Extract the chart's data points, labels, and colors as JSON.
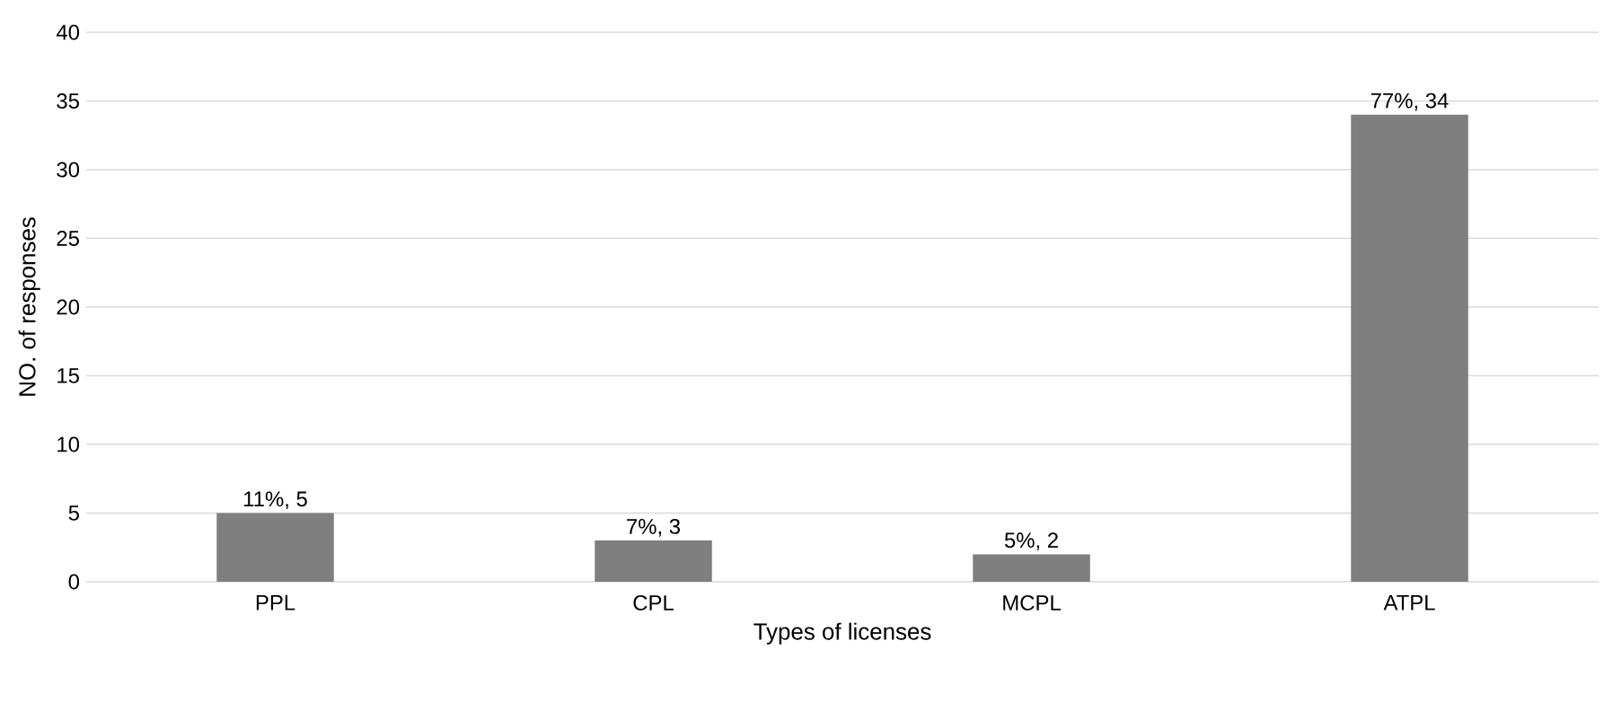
{
  "chart_data": {
    "type": "bar",
    "xlabel": "Types of licenses",
    "ylabel": "NO. of responses",
    "categories": [
      "PPL",
      "CPL",
      "MCPL",
      "ATPL"
    ],
    "values": [
      5,
      3,
      2,
      34
    ],
    "value_labels": [
      "11%, 5",
      "7%, 3",
      "5%, 2",
      "77%, 34"
    ],
    "color": "#7f7f7f",
    "ylim": [
      0,
      40
    ],
    "yticks": [
      0,
      5,
      10,
      15,
      20,
      25,
      30,
      35,
      40
    ],
    "grid": "y"
  }
}
